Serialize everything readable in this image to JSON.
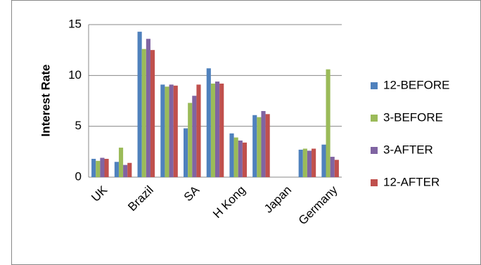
{
  "chart_data": {
    "type": "bar",
    "y_label": "Interest Rate",
    "categories": [
      "UK",
      null,
      "Brazil",
      null,
      "SA",
      null,
      "H Kong",
      null,
      "Japan",
      null,
      "Germany"
    ],
    "series": [
      {
        "name": "12-BEFORE",
        "color": "#4f81bd",
        "values": [
          1.8,
          1.5,
          14.3,
          9.1,
          4.8,
          10.7,
          4.3,
          6.1,
          null,
          2.7,
          3.2
        ]
      },
      {
        "name": "3-BEFORE",
        "color": "#9bbb59",
        "values": [
          1.6,
          2.9,
          12.6,
          8.9,
          7.3,
          9.2,
          3.9,
          5.9,
          null,
          2.8,
          10.6
        ]
      },
      {
        "name": "3-AFTER",
        "color": "#8064a2",
        "values": [
          1.9,
          1.2,
          13.6,
          9.1,
          8.0,
          9.4,
          3.6,
          6.5,
          null,
          2.6,
          2.0
        ]
      },
      {
        "name": "12-AFTER",
        "color": "#c0504d",
        "values": [
          1.8,
          1.4,
          12.5,
          9.0,
          9.1,
          9.2,
          3.4,
          6.2,
          null,
          2.8,
          1.7
        ]
      }
    ],
    "ylim": [
      0,
      15
    ],
    "yticks": [
      0,
      5,
      10,
      15
    ],
    "grid": true,
    "legend": "right"
  }
}
